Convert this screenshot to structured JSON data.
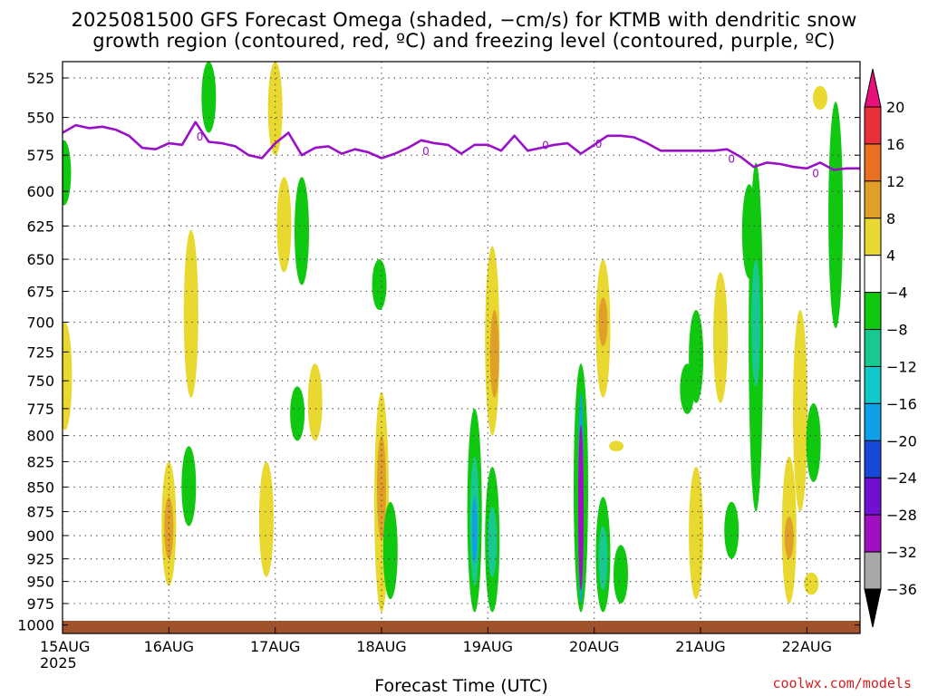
{
  "title_line1": "2025081500 GFS Forecast Omega (shaded, −cm/s) for KTMB with dendritic snow",
  "title_line2": "growth region (contoured, red, ºC) and freezing level (contoured, purple, ºC)",
  "credit": "coolwx.com/models",
  "chart_data": {
    "type": "heatmap",
    "xlabel": "Forecast Time (UTC)",
    "ylabel": "",
    "x_ticks": [
      "15AUG\n2025",
      "16AUG",
      "17AUG",
      "18AUG",
      "19AUG",
      "20AUG",
      "21AUG",
      "22AUG"
    ],
    "x_tick_hours": [
      0,
      24,
      48,
      72,
      96,
      120,
      144,
      168
    ],
    "xlim_hours": [
      0,
      180
    ],
    "y_ticks_hpa": [
      525,
      550,
      575,
      600,
      625,
      650,
      675,
      700,
      725,
      750,
      775,
      800,
      825,
      850,
      875,
      900,
      925,
      950,
      975,
      1000
    ],
    "ylim_hpa": [
      515,
      1010
    ],
    "y_scale": "log-pressure",
    "grid": "dotted",
    "colorbar": {
      "labels": [
        "20",
        "16",
        "12",
        "8",
        "4",
        "−4",
        "−8",
        "−12",
        "−16",
        "−20",
        "−24",
        "−28",
        "−32",
        "−36"
      ],
      "colors": [
        "#e8107a",
        "#e8303a",
        "#e87020",
        "#e0a028",
        "#e8d830",
        "#ffffff",
        "#10c810",
        "#18c890",
        "#10c8c8",
        "#10a0e8",
        "#1848d8",
        "#7010d0",
        "#a010c0",
        "#a8a8a8",
        "#000000"
      ]
    },
    "freezing_level_contour": {
      "label": "0",
      "color": "#9a10c8",
      "hours": [
        0,
        3,
        6,
        9,
        12,
        15,
        18,
        21,
        24,
        27,
        30,
        33,
        36,
        39,
        42,
        45,
        48,
        51,
        54,
        57,
        60,
        63,
        66,
        69,
        72,
        75,
        78,
        81,
        84,
        87,
        90,
        93,
        96,
        99,
        102,
        105,
        108,
        111,
        114,
        117,
        120,
        123,
        126,
        129,
        132,
        135,
        138,
        141,
        144,
        147,
        150,
        153,
        156,
        159,
        162,
        165,
        168,
        171,
        174,
        177,
        180
      ],
      "pressure_hpa": [
        560,
        555,
        557,
        556,
        558,
        562,
        570,
        571,
        567,
        568,
        553,
        566,
        567,
        569,
        575,
        577,
        567,
        560,
        575,
        570,
        569,
        574,
        571,
        573,
        577,
        574,
        570,
        565,
        567,
        568,
        574,
        568,
        568,
        572,
        562,
        572,
        570,
        568,
        567,
        574,
        568,
        562,
        562,
        563,
        567,
        572,
        572,
        572,
        572,
        572,
        571,
        576,
        583,
        580,
        581,
        583,
        584,
        580,
        585,
        584,
        584
      ]
    },
    "omega_regions": [
      {
        "hour": 0.5,
        "p_top": 700,
        "p_bottom": 795,
        "value": 5
      },
      {
        "hour": 0.3,
        "p_top": 565,
        "p_bottom": 610,
        "value": -6
      },
      {
        "hour": 24,
        "p_top": 825,
        "p_bottom": 955,
        "value": 6
      },
      {
        "hour": 24,
        "p_top": 860,
        "p_bottom": 925,
        "value": 10
      },
      {
        "hour": 28.5,
        "p_top": 810,
        "p_bottom": 890,
        "value": -6
      },
      {
        "hour": 29,
        "p_top": 628,
        "p_bottom": 765,
        "value": 5
      },
      {
        "hour": 33,
        "p_top": 515,
        "p_bottom": 560,
        "value": -6
      },
      {
        "hour": 46,
        "p_top": 825,
        "p_bottom": 945,
        "value": 5
      },
      {
        "hour": 48,
        "p_top": 515,
        "p_bottom": 575,
        "value": 5
      },
      {
        "hour": 50,
        "p_top": 590,
        "p_bottom": 660,
        "value": 5
      },
      {
        "hour": 53,
        "p_top": 755,
        "p_bottom": 805,
        "value": -6
      },
      {
        "hour": 54,
        "p_top": 590,
        "p_bottom": 670,
        "value": -6
      },
      {
        "hour": 57,
        "p_top": 735,
        "p_bottom": 805,
        "value": 5
      },
      {
        "hour": 72,
        "p_top": 760,
        "p_bottom": 985,
        "value": 5
      },
      {
        "hour": 72,
        "p_top": 800,
        "p_bottom": 905,
        "value": 10
      },
      {
        "hour": 71.5,
        "p_top": 650,
        "p_bottom": 690,
        "value": -6
      },
      {
        "hour": 74,
        "p_top": 865,
        "p_bottom": 970,
        "value": -6
      },
      {
        "hour": 93,
        "p_top": 775,
        "p_bottom": 985,
        "value": -6
      },
      {
        "hour": 93,
        "p_top": 820,
        "p_bottom": 955,
        "value": -10
      },
      {
        "hour": 93,
        "p_top": 860,
        "p_bottom": 930,
        "value": -16
      },
      {
        "hour": 97,
        "p_top": 830,
        "p_bottom": 985,
        "value": -6
      },
      {
        "hour": 97,
        "p_top": 870,
        "p_bottom": 945,
        "value": -10
      },
      {
        "hour": 97,
        "p_top": 640,
        "p_bottom": 800,
        "value": 5
      },
      {
        "hour": 97.5,
        "p_top": 690,
        "p_bottom": 765,
        "value": 10
      },
      {
        "hour": 117,
        "p_top": 735,
        "p_bottom": 985,
        "value": -6
      },
      {
        "hour": 117,
        "p_top": 760,
        "p_bottom": 975,
        "value": -16
      },
      {
        "hour": 117,
        "p_top": 790,
        "p_bottom": 960,
        "value": -28
      },
      {
        "hour": 122,
        "p_top": 650,
        "p_bottom": 765,
        "value": 5
      },
      {
        "hour": 122,
        "p_top": 680,
        "p_bottom": 720,
        "value": 10
      },
      {
        "hour": 122,
        "p_top": 860,
        "p_bottom": 985,
        "value": -6
      },
      {
        "hour": 122,
        "p_top": 890,
        "p_bottom": 960,
        "value": -10
      },
      {
        "hour": 125,
        "p_top": 805,
        "p_bottom": 815,
        "value": 5
      },
      {
        "hour": 126,
        "p_top": 910,
        "p_bottom": 975,
        "value": -6
      },
      {
        "hour": 141,
        "p_top": 735,
        "p_bottom": 780,
        "value": -6
      },
      {
        "hour": 143,
        "p_top": 690,
        "p_bottom": 770,
        "value": -6
      },
      {
        "hour": 143,
        "p_top": 830,
        "p_bottom": 970,
        "value": 5
      },
      {
        "hour": 148.5,
        "p_top": 660,
        "p_bottom": 770,
        "value": 5
      },
      {
        "hour": 151,
        "p_top": 865,
        "p_bottom": 925,
        "value": -6
      },
      {
        "hour": 155,
        "p_top": 595,
        "p_bottom": 665,
        "value": -6
      },
      {
        "hour": 156.5,
        "p_top": 580,
        "p_bottom": 875,
        "value": -6
      },
      {
        "hour": 156.5,
        "p_top": 650,
        "p_bottom": 755,
        "value": -10
      },
      {
        "hour": 164,
        "p_top": 820,
        "p_bottom": 975,
        "value": 5
      },
      {
        "hour": 164,
        "p_top": 880,
        "p_bottom": 925,
        "value": 10
      },
      {
        "hour": 166.5,
        "p_top": 690,
        "p_bottom": 875,
        "value": 5
      },
      {
        "hour": 169.5,
        "p_top": 770,
        "p_bottom": 845,
        "value": -6
      },
      {
        "hour": 171,
        "p_top": 530,
        "p_bottom": 545,
        "value": 5
      },
      {
        "hour": 174.5,
        "p_top": 540,
        "p_bottom": 705,
        "value": -6
      },
      {
        "hour": 169,
        "p_top": 940,
        "p_bottom": 965,
        "value": 5
      }
    ]
  }
}
